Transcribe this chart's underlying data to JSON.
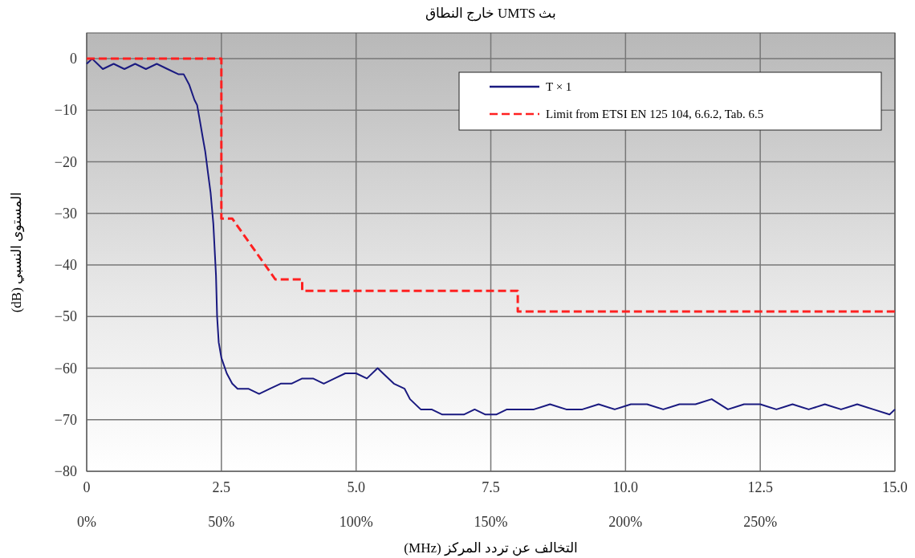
{
  "chart_data": {
    "type": "line",
    "title": "بث UMTS خارج النطاق",
    "xlabel": "التخالف عن تردد المركز (MHz)",
    "ylabel": "المستوى النسبي (dB)",
    "xlim": [
      0,
      15
    ],
    "xticks": [
      0,
      2.5,
      {
        "value": 5,
        "label": "5.0"
      },
      {
        "value": 7.5,
        "label": "7.5"
      },
      {
        "value": 10,
        "label": "10.0"
      },
      {
        "value": 12.5,
        "label": "12.5"
      },
      {
        "value": 15,
        "label": "15.0"
      }
    ],
    "x2lim": [
      0,
      300
    ],
    "x2ticks": [
      {
        "value": 0,
        "label": "0%"
      },
      {
        "value": 50,
        "label": "50%"
      },
      {
        "value": 100,
        "label": "100%"
      },
      {
        "value": 150,
        "label": "150%"
      },
      {
        "value": 200,
        "label": "200%"
      },
      {
        "value": 250,
        "label": "250%"
      }
    ],
    "ylim": [
      -80,
      5
    ],
    "yticks": [
      0,
      {
        "value": -10,
        "label": "−10"
      },
      {
        "value": -20,
        "label": "−20"
      },
      {
        "value": -30,
        "label": "−30"
      },
      {
        "value": -40,
        "label": "−40"
      },
      {
        "value": -50,
        "label": "−50"
      },
      {
        "value": -60,
        "label": "−60"
      },
      {
        "value": -70,
        "label": "−70"
      },
      {
        "value": -80,
        "label": "−80"
      }
    ],
    "grid": true,
    "legend": "top right",
    "series": [
      {
        "name": "T × 1",
        "color": "#1a1a80",
        "line_style": "solid",
        "x": [
          0,
          0.1,
          0.2,
          0.3,
          0.5,
          0.7,
          0.9,
          1.1,
          1.3,
          1.5,
          1.7,
          1.8,
          1.9,
          2.0,
          2.05,
          2.1,
          2.15,
          2.2,
          2.25,
          2.3,
          2.35,
          2.4,
          2.42,
          2.45,
          2.5,
          2.6,
          2.7,
          2.8,
          3.0,
          3.2,
          3.4,
          3.6,
          3.8,
          4.0,
          4.2,
          4.4,
          4.6,
          4.8,
          5.0,
          5.2,
          5.4,
          5.5,
          5.7,
          5.9,
          6.0,
          6.2,
          6.4,
          6.6,
          6.8,
          7.0,
          7.2,
          7.4,
          7.6,
          7.8,
          8.0,
          8.3,
          8.6,
          8.9,
          9.2,
          9.5,
          9.8,
          10.1,
          10.4,
          10.7,
          11.0,
          11.3,
          11.6,
          11.9,
          12.2,
          12.5,
          12.8,
          13.1,
          13.4,
          13.7,
          14.0,
          14.3,
          14.6,
          14.9,
          15.0
        ],
        "values": [
          -1,
          0,
          -1,
          -2,
          -1,
          -2,
          -1,
          -2,
          -1,
          -2,
          -3,
          -3,
          -5,
          -8,
          -9,
          -12,
          -15,
          -18,
          -22,
          -26,
          -32,
          -42,
          -50,
          -55,
          -58,
          -61,
          -63,
          -64,
          -64,
          -65,
          -64,
          -63,
          -63,
          -62,
          -62,
          -63,
          -62,
          -61,
          -61,
          -62,
          -60,
          -61,
          -63,
          -64,
          -66,
          -68,
          -68,
          -69,
          -69,
          -69,
          -68,
          -69,
          -69,
          -68,
          -68,
          -68,
          -67,
          -68,
          -68,
          -67,
          -68,
          -67,
          -67,
          -68,
          -67,
          -67,
          -66,
          -68,
          -67,
          -67,
          -68,
          -67,
          -68,
          -67,
          -68,
          -67,
          -68,
          -69,
          -68
        ]
      },
      {
        "name": "Limit from ETSI EN 125 104, 6.6.2, Tab. 6.5",
        "color": "#ff2020",
        "line_style": "dashed",
        "x": [
          0,
          2.5,
          2.5,
          2.7,
          3.5,
          4.0,
          4.0,
          8.0,
          8.0,
          15
        ],
        "values": [
          0,
          0,
          -31,
          -31,
          -42.8,
          -42.8,
          -45,
          -45,
          -49,
          -49
        ]
      }
    ]
  }
}
